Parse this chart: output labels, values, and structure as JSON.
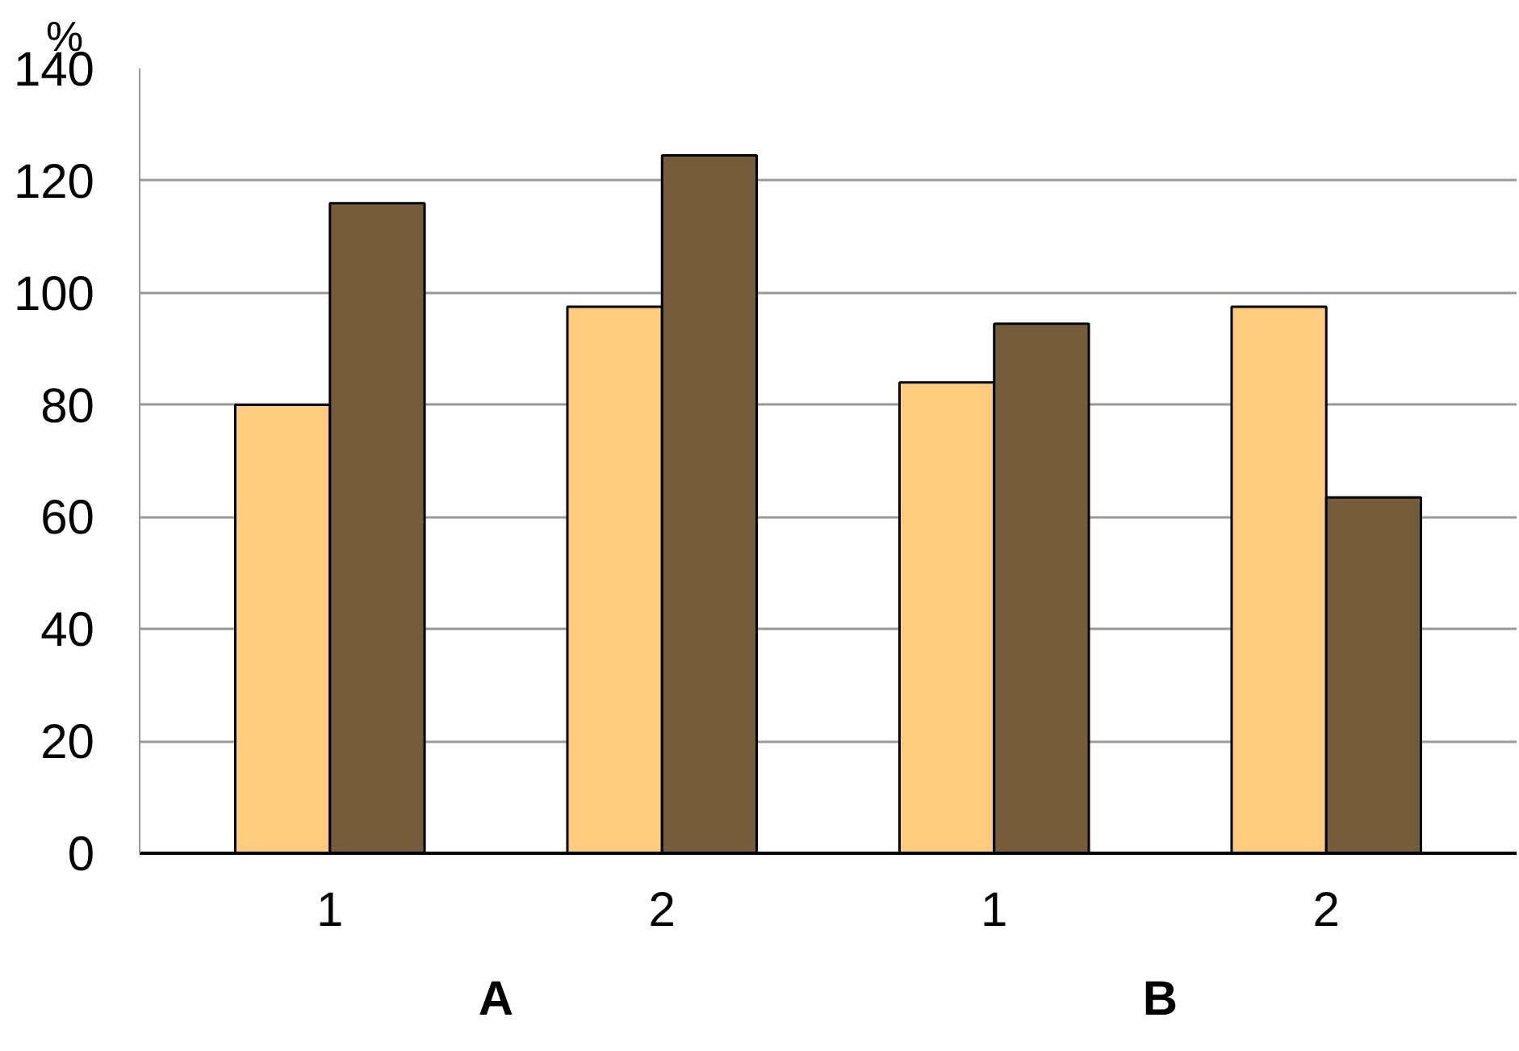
{
  "chart_data": {
    "type": "bar",
    "ylabel": "%",
    "categories": [
      "1",
      "2",
      "1",
      "2"
    ],
    "series": [
      {
        "color": "#ffcc7f",
        "values": [
          80,
          97.5,
          84,
          97.5
        ]
      },
      {
        "color": "#755c3b",
        "values": [
          116,
          124.5,
          94.5,
          63.5
        ]
      }
    ],
    "annotations": [
      "A",
      "B"
    ],
    "ylim": [
      0,
      140
    ],
    "yticks": [
      0,
      20,
      40,
      60,
      80,
      100,
      120,
      140
    ],
    "grid": "y"
  }
}
